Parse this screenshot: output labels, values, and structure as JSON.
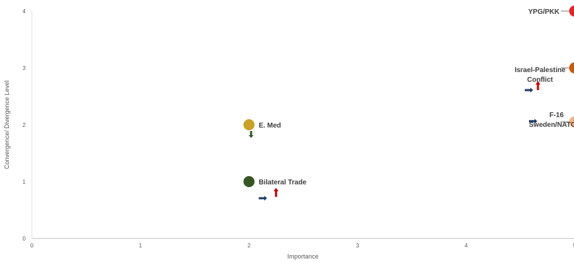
{
  "chart_data": {
    "type": "scatter",
    "xlabel": "Importance",
    "ylabel": "Convergence/ Divergence Level",
    "xlim": [
      0,
      5
    ],
    "ylim": [
      0,
      4
    ],
    "x_ticks": [
      "0",
      "1",
      "2",
      "3",
      "4",
      "5"
    ],
    "y_ticks": [
      "0",
      "1",
      "2",
      "3",
      "4"
    ],
    "grid": false,
    "points": [
      {
        "label": [
          "E. Med"
        ],
        "x": 2,
        "y": 2,
        "color": "#C9A227",
        "arrows": [
          "down"
        ]
      },
      {
        "label": [
          "Bilateral Trade"
        ],
        "x": 2,
        "y": 1,
        "color": "#375623",
        "arrows": [
          "right",
          "up"
        ]
      },
      {
        "label": [
          "YPG/PKK"
        ],
        "x": 5,
        "y": 4,
        "color": "#E0262A",
        "arrows": []
      },
      {
        "label": [
          "Israel-Palestine",
          "Conflict"
        ],
        "x": 5,
        "y": 3,
        "color": "#C55A11",
        "arrows": [
          "right",
          "up"
        ]
      },
      {
        "label": [
          "F-16",
          "Sweden/NATO"
        ],
        "x": 5,
        "y": 2.05,
        "color": "#F4B183",
        "arrows": [
          "right"
        ]
      }
    ],
    "arrow_colors": {
      "right": "#1F3864",
      "up": "#C00000",
      "down": "#375623"
    }
  }
}
